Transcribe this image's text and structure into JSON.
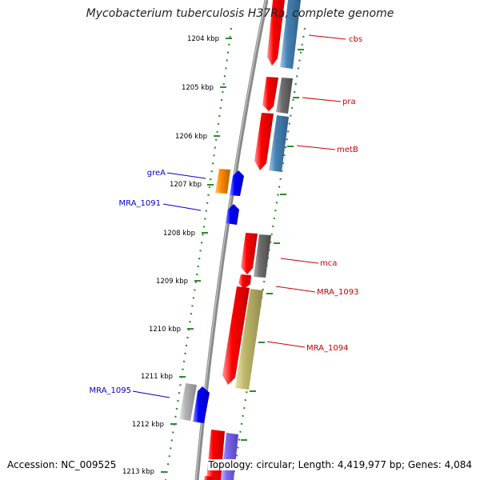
{
  "title": "Mycobacterium tuberculosis H37Ra, complete genome",
  "accession": "Accession: NC_009525",
  "topology": "Topology: circular; Length: 4,419,977 bp; Genes: 4,084",
  "colors": {
    "backbone": "#8a8a8a",
    "tick": "#2e8b2e",
    "forward_label": "#cc0000",
    "reverse_label": "#0000cc",
    "red_gene": "#ff0000",
    "blue_gene": "#0000ff",
    "steelblue_gene": "#4682b4",
    "gray_gene": "#6e6e6e",
    "orange_gene": "#ff8c00",
    "khaki_gene": "#bdb76b",
    "silver_gene": "#b4b4b4",
    "violet_gene": "#7b68ee"
  },
  "scale_labels": [
    "1204 kbp",
    "1205 kbp",
    "1206 kbp",
    "1207 kbp",
    "1208 kbp",
    "1209 kbp",
    "1210 kbp",
    "1211 kbp",
    "1212 kbp",
    "1213 kbp"
  ],
  "forward_genes": [
    {
      "label": "cbs"
    },
    {
      "label": "pra"
    },
    {
      "label": "metB"
    },
    {
      "label": "mca"
    },
    {
      "label": "MRA_1093"
    },
    {
      "label": "MRA_1094"
    }
  ],
  "reverse_genes": [
    {
      "label": "greA"
    },
    {
      "label": "MRA_1091"
    },
    {
      "label": "MRA_1095"
    }
  ]
}
